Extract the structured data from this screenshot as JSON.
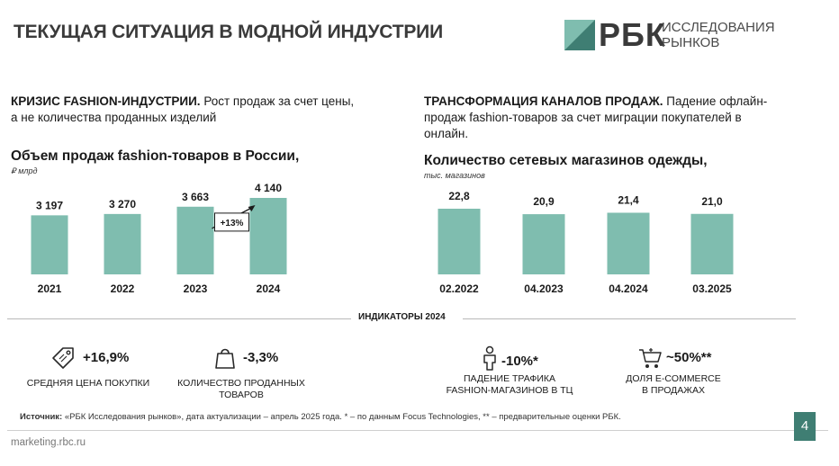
{
  "page_title": "ТЕКУЩАЯ СИТУАЦИЯ В МОДНОЙ ИНДУСТРИИ",
  "logo": {
    "brand": "РБК",
    "line1": "ИССЛЕДОВАНИЯ",
    "line2": "РЫНКОВ"
  },
  "left_section": {
    "heading": "КРИЗИС FASHION-ИНДУСТРИИ.",
    "text1": " Рост продаж за счет цены,",
    "text2": "а не количества проданных изделий"
  },
  "right_section": {
    "heading": "ТРАНСФОРМАЦИЯ КАНАЛОВ ПРОДАЖ.",
    "text1": " Падение офлайн-",
    "text2": "продаж  fashion-товаров за счет миграции покупателей в",
    "text3": "онлайн."
  },
  "chart_data": [
    {
      "type": "bar",
      "title": "Объем продаж fashion-товаров в России,",
      "unit": "₽ млрд",
      "categories": [
        "2021",
        "2022",
        "2023",
        "2024"
      ],
      "values": [
        3197,
        3270,
        3663,
        4140
      ],
      "value_labels": [
        "3 197",
        "3 270",
        "3 663",
        "4 140"
      ],
      "annotation": "+13%",
      "color": "#7fbdaf"
    },
    {
      "type": "bar",
      "title": "Количество сетевых магазинов одежды,",
      "unit": "тыс. магазинов",
      "categories": [
        "02.2022",
        "04.2023",
        "04.2024",
        "03.2025"
      ],
      "values": [
        22.8,
        20.9,
        21.4,
        21.0
      ],
      "value_labels": [
        "22,8",
        "20,9",
        "21,4",
        "21,0"
      ],
      "color": "#7fbdaf"
    }
  ],
  "indicators": {
    "title": "ИНДИКАТОРЫ 2024",
    "items": [
      {
        "icon": "price-tag-icon",
        "value": "+16,9%",
        "label1": "СРЕДНЯЯ ЦЕНА ПОКУПКИ",
        "label2": ""
      },
      {
        "icon": "shopping-bag-icon",
        "value": "-3,3%",
        "label1": "КОЛИЧЕСТВО ПРОДАННЫХ",
        "label2": "ТОВАРОВ"
      },
      {
        "icon": "person-icon",
        "value": "-10%*",
        "label1": "ПАДЕНИЕ ТРАФИКА",
        "label2": "FASHION-МАГАЗИНОВ В ТЦ"
      },
      {
        "icon": "cart-icon",
        "value": "~50%**",
        "label1": "ДОЛЯ E-COMMERCE",
        "label2": "В ПРОДАЖАХ"
      }
    ]
  },
  "source": {
    "label": "Источник:",
    "text": " «РБК Исследования рынков», дата актуализации – апрель 2025 года. * – по данным Focus Technologies, ** – предварительные оценки РБК."
  },
  "footer_url": "marketing.rbc.ru",
  "page_number": "4"
}
